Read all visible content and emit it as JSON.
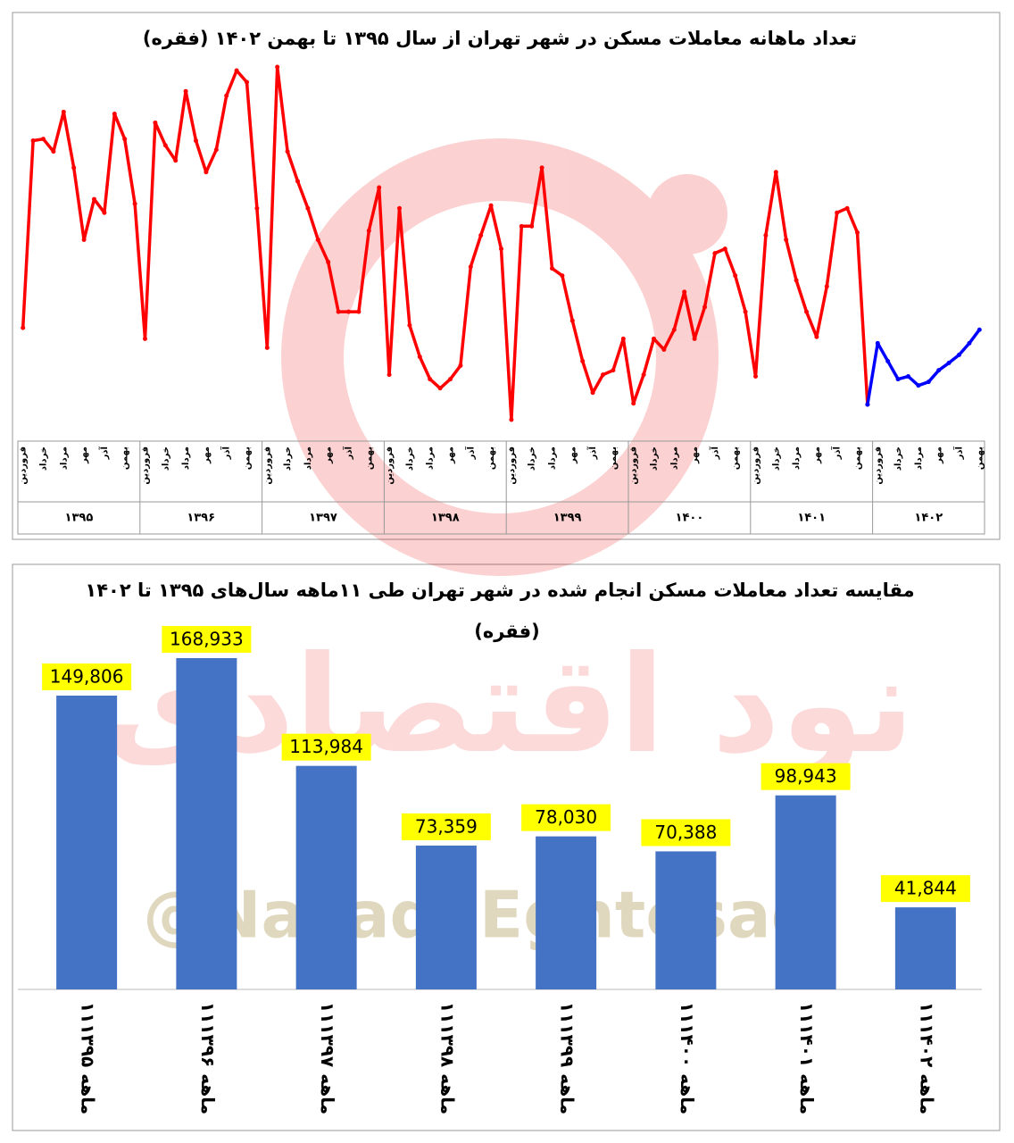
{
  "chart_data": [
    {
      "type": "line",
      "title": "تعداد ماهانه معاملات مسکن در شهر تهران از سال ۱۳۹۵ تا بهمن ۱۴۰۲  (فقره)",
      "categories": [
        "فروردین",
        null,
        "خرداد",
        null,
        "مرداد",
        null,
        "مهر",
        null,
        "آذر",
        null,
        "بهمن",
        null,
        "فروردین",
        null,
        "خرداد",
        null,
        "مرداد",
        null,
        "مهر",
        null,
        "آذر",
        null,
        "بهمن",
        null,
        "فروردین",
        null,
        "خرداد",
        null,
        "مرداد",
        null,
        "مهر",
        null,
        "آذر",
        null,
        "بهمن",
        null,
        "فروردین",
        null,
        "خرداد",
        null,
        "مرداد",
        null,
        "مهر",
        null,
        "آذر",
        null,
        "بهمن",
        null,
        "فروردین",
        null,
        "خرداد",
        null,
        "مرداد",
        null,
        "مهر",
        null,
        "آذر",
        null,
        "بهمن",
        null,
        "فروردین",
        null,
        "خرداد",
        null,
        "مرداد",
        null,
        "مهر",
        null,
        "آذر",
        null,
        "بهمن",
        null,
        "فروردین",
        null,
        "خرداد",
        null,
        "مرداد",
        null,
        "مهر",
        null,
        "آذر",
        null,
        "بهمن",
        null,
        "فروردین",
        null,
        "خرداد",
        null,
        "مرداد",
        null,
        "مهر",
        null,
        "آذر",
        null,
        "بهمن"
      ],
      "category_groups": [
        "۱۳۹۵",
        "۱۳۹۶",
        "۱۳۹۷",
        "۱۳۹۸",
        "۱۳۹۹",
        "۱۴۰۰",
        "۱۴۰۱",
        "۱۴۰۲"
      ],
      "series": [
        {
          "color": "#ff0000",
          "values": [
            6020,
            14880,
            14960,
            14370,
            16240,
            13600,
            10190,
            12110,
            11470,
            16150,
            14960,
            11890,
            5500,
            15730,
            14660,
            13940,
            17220,
            14880,
            13390,
            14450,
            17010,
            18200,
            17650,
            11680,
            5080,
            18370,
            14370,
            12960,
            11680,
            10190,
            9130,
            6780,
            6780,
            6780,
            10620,
            12660,
            3800,
            11680,
            6140,
            4650,
            3590,
            3160,
            3590,
            4230,
            8910,
            10400,
            11810,
            9760,
            1670,
            10830,
            10830,
            13600,
            8830,
            8490,
            6360,
            4440,
            2950,
            3800,
            4010,
            5500,
            2440,
            3800,
            5500,
            4990,
            5930,
            7720,
            5500,
            7000,
            9550,
            9760,
            8490,
            6780,
            3720,
            10400,
            13390,
            10190,
            8270,
            6780,
            5590,
            7980,
            11470,
            11680,
            10530,
            2390,
            null,
            null,
            null,
            null,
            null,
            null,
            null,
            null,
            null,
            null,
            null
          ]
        },
        {
          "color": "#0000ff",
          "values": [
            null,
            null,
            null,
            null,
            null,
            null,
            null,
            null,
            null,
            null,
            null,
            null,
            null,
            null,
            null,
            null,
            null,
            null,
            null,
            null,
            null,
            null,
            null,
            null,
            null,
            null,
            null,
            null,
            null,
            null,
            null,
            null,
            null,
            null,
            null,
            null,
            null,
            null,
            null,
            null,
            null,
            null,
            null,
            null,
            null,
            null,
            null,
            null,
            null,
            null,
            null,
            null,
            null,
            null,
            null,
            null,
            null,
            null,
            null,
            null,
            null,
            null,
            null,
            null,
            null,
            null,
            null,
            null,
            null,
            null,
            null,
            null,
            null,
            null,
            null,
            null,
            null,
            null,
            null,
            null,
            null,
            null,
            null,
            2390,
            5290,
            4440,
            3590,
            3720,
            3290,
            3460,
            4010,
            4360,
            4740,
            5290,
            5930
          ]
        }
      ]
    },
    {
      "type": "bar",
      "title": "مقایسه تعداد معاملات مسکن انجام شده در شهر تهران طی ۱۱ماهه سال‌های ۱۳۹۵ تا ۱۴۰۲",
      "subtitle": "(فقره)",
      "categories": [
        "۱۱ماهه ۱۳۹۵",
        "۱۱ماهه ۱۳۹۶",
        "۱۱ماهه ۱۳۹۷",
        "۱۱ماهه ۱۳۹۸",
        "۱۱ماهه ۱۳۹۹",
        "۱۱ماهه ۱۴۰۰",
        "۱۱ماهه ۱۴۰۱",
        "۱۱ماهه ۱۴۰۲"
      ],
      "values": [
        149806,
        168933,
        113984,
        73359,
        78030,
        70388,
        98943,
        41844
      ],
      "value_labels": [
        "149,806",
        "168,933",
        "113,984",
        "73,359",
        "78,030",
        "70,388",
        "98,943",
        "41,844"
      ],
      "color": "#4472c4",
      "label_background": "#ffff00"
    }
  ],
  "watermark": {
    "handle": "@NavadeEghtesadi",
    "brand": "نود اقتصادی"
  }
}
